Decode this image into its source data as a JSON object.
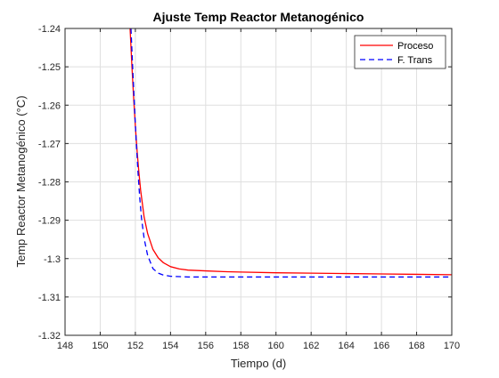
{
  "chart_data": {
    "type": "line",
    "title": "Ajuste Temp Reactor Metanogénico",
    "xlabel": "Tiempo (d)",
    "ylabel": "Temp Reactor Metanogénico (°C)",
    "xlim": [
      148,
      170
    ],
    "ylim": [
      -1.32,
      -1.24
    ],
    "xticks": [
      148,
      150,
      152,
      154,
      156,
      158,
      160,
      162,
      164,
      166,
      168,
      170
    ],
    "yticks": [
      -1.24,
      -1.25,
      -1.26,
      -1.27,
      -1.28,
      -1.29,
      -1.3,
      -1.31,
      -1.32
    ],
    "xtick_labels": [
      "148",
      "150",
      "152",
      "154",
      "156",
      "158",
      "160",
      "162",
      "164",
      "166",
      "168",
      "170"
    ],
    "ytick_labels": [
      "-1.24",
      "-1.25",
      "-1.26",
      "-1.27",
      "-1.28",
      "-1.29",
      "-1.3",
      "-1.31",
      "-1.32"
    ],
    "grid": true,
    "legend_position": "top-right",
    "series": [
      {
        "name": "Proceso",
        "color": "#ff0000",
        "style": "solid",
        "x": [
          151.7,
          151.8,
          151.9,
          152.0,
          152.1,
          152.2,
          152.3,
          152.5,
          152.7,
          153.0,
          153.3,
          153.6,
          154.0,
          154.5,
          155.0,
          156.0,
          157.0,
          158.0,
          160.0,
          162.0,
          164.0,
          166.0,
          168.0,
          170.0
        ],
        "y": [
          -1.24,
          -1.2495,
          -1.258,
          -1.2655,
          -1.272,
          -1.2775,
          -1.2822,
          -1.2892,
          -1.2935,
          -1.2976,
          -1.2998,
          -1.3011,
          -1.3021,
          -1.3027,
          -1.303,
          -1.3032,
          -1.3034,
          -1.3035,
          -1.3037,
          -1.3038,
          -1.3039,
          -1.304,
          -1.3041,
          -1.3042
        ]
      },
      {
        "name": "F. Trans",
        "color": "#0000ff",
        "style": "dashed",
        "x": [
          151.75,
          151.85,
          151.95,
          152.05,
          152.15,
          152.25,
          152.35,
          152.5,
          152.7,
          153.0,
          153.3,
          153.6,
          154.0,
          154.5,
          155.0,
          156.0,
          158.0,
          160.0,
          163.0,
          166.0,
          170.0
        ],
        "y": [
          -1.24,
          -1.2505,
          -1.2605,
          -1.2695,
          -1.2775,
          -1.2842,
          -1.2895,
          -1.2948,
          -1.2992,
          -1.3026,
          -1.3038,
          -1.3043,
          -1.3046,
          -1.3047,
          -1.3048,
          -1.3048,
          -1.3048,
          -1.3048,
          -1.3048,
          -1.3048,
          -1.3048
        ]
      }
    ]
  }
}
